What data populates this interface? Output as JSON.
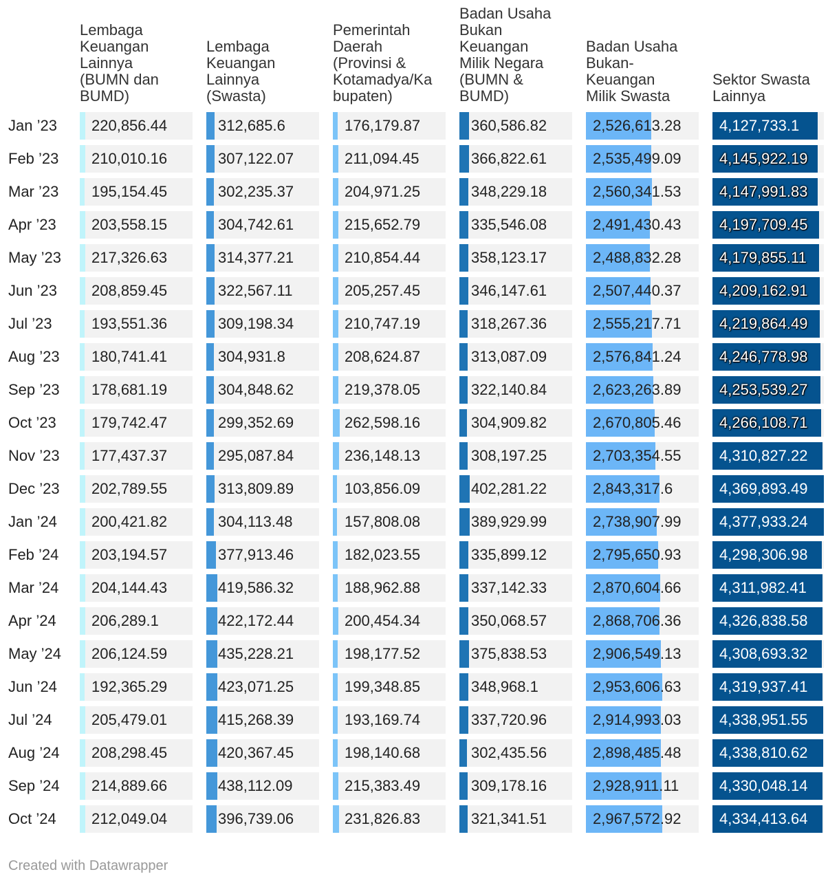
{
  "chart_data": {
    "type": "table",
    "columns": [
      {
        "header": "Lembaga\nKeuangan\nLainnya\n(BUMN dan\nBUMD)",
        "bar_color": "#c0f4fb"
      },
      {
        "header": "Lembaga\nKeuangan\nLainnya\n(Swasta)",
        "bar_color": "#4497d9"
      },
      {
        "header": "Pemerintah\nDaerah\n(Provinsi &\nKotamadya/Ka\nbupaten)",
        "bar_color": "#7cc4f8"
      },
      {
        "header": "Badan Usaha\nBukan\nKeuangan\nMilik Negara\n(BUMN &\nBUMD)",
        "bar_color": "#1f74b4"
      },
      {
        "header": "Badan Usaha\nBukan-\nKeuangan\nMilik Swasta",
        "bar_color": "#6cb6f7"
      },
      {
        "header": "Sektor Swasta\nLainnya",
        "bar_color": "#05538f"
      }
    ],
    "rows": [
      {
        "label": "Jan ’23",
        "values": [
          "220,856.44",
          "312,685.6",
          "176,179.87",
          "360,586.82",
          "2,526,613.28",
          "4,127,733.1"
        ]
      },
      {
        "label": "Feb ’23",
        "values": [
          "210,010.16",
          "307,122.07",
          "211,094.45",
          "366,822.61",
          "2,535,499.09",
          "4,145,922.19"
        ]
      },
      {
        "label": "Mar ’23",
        "values": [
          "195,154.45",
          "302,235.37",
          "204,971.25",
          "348,229.18",
          "2,560,341.53",
          "4,147,991.83"
        ]
      },
      {
        "label": "Apr ’23",
        "values": [
          "203,558.15",
          "304,742.61",
          "215,652.79",
          "335,546.08",
          "2,491,430.43",
          "4,197,709.45"
        ]
      },
      {
        "label": "May ’23",
        "values": [
          "217,326.63",
          "314,377.21",
          "210,854.44",
          "358,123.17",
          "2,488,832.28",
          "4,179,855.11"
        ]
      },
      {
        "label": "Jun ’23",
        "values": [
          "208,859.45",
          "322,567.11",
          "205,257.45",
          "346,147.61",
          "2,507,440.37",
          "4,209,162.91"
        ]
      },
      {
        "label": "Jul ’23",
        "values": [
          "193,551.36",
          "309,198.34",
          "210,747.19",
          "318,267.36",
          "2,555,217.71",
          "4,219,864.49"
        ]
      },
      {
        "label": "Aug ’23",
        "values": [
          "180,741.41",
          "304,931.8",
          "208,624.87",
          "313,087.09",
          "2,576,841.24",
          "4,246,778.98"
        ]
      },
      {
        "label": "Sep ’23",
        "values": [
          "178,681.19",
          "304,848.62",
          "219,378.05",
          "322,140.84",
          "2,623,263.89",
          "4,253,539.27"
        ]
      },
      {
        "label": "Oct ’23",
        "values": [
          "179,742.47",
          "299,352.69",
          "262,598.16",
          "304,909.82",
          "2,670,805.46",
          "4,266,108.71"
        ]
      },
      {
        "label": "Nov ’23",
        "values": [
          "177,437.37",
          "295,087.84",
          "236,148.13",
          "308,197.25",
          "2,703,354.55",
          "4,310,827.22"
        ]
      },
      {
        "label": "Dec ’23",
        "values": [
          "202,789.55",
          "313,809.89",
          "103,856.09",
          "402,281.22",
          "2,843,317.6",
          "4,369,893.49"
        ]
      },
      {
        "label": "Jan ’24",
        "values": [
          "200,421.82",
          "304,113.48",
          "157,808.08",
          "389,929.99",
          "2,738,907.99",
          "4,377,933.24"
        ]
      },
      {
        "label": "Feb ’24",
        "values": [
          "203,194.57",
          "377,913.46",
          "182,023.55",
          "335,899.12",
          "2,795,650.93",
          "4,298,306.98"
        ]
      },
      {
        "label": "Mar ’24",
        "values": [
          "204,144.43",
          "419,586.32",
          "188,962.88",
          "337,142.33",
          "2,870,604.66",
          "4,311,982.41"
        ]
      },
      {
        "label": "Apr ’24",
        "values": [
          "206,289.1",
          "422,172.44",
          "200,454.34",
          "350,068.57",
          "2,868,706.36",
          "4,326,838.58"
        ]
      },
      {
        "label": "May ’24",
        "values": [
          "206,124.59",
          "435,228.21",
          "198,177.52",
          "375,838.53",
          "2,906,549.13",
          "4,308,693.32"
        ]
      },
      {
        "label": "Jun ’24",
        "values": [
          "192,365.29",
          "423,071.25",
          "199,348.85",
          "348,968.1",
          "2,953,606.63",
          "4,319,937.41"
        ]
      },
      {
        "label": "Jul ’24",
        "values": [
          "205,479.01",
          "415,268.39",
          "193,169.74",
          "337,720.96",
          "2,914,993.03",
          "4,338,951.55"
        ]
      },
      {
        "label": "Aug ’24",
        "values": [
          "208,298.45",
          "420,367.45",
          "198,140.68",
          "302,435.56",
          "2,898,485.48",
          "4,338,810.62"
        ]
      },
      {
        "label": "Sep ’24",
        "values": [
          "214,889.66",
          "438,112.09",
          "215,383.49",
          "309,178.16",
          "2,928,911.11",
          "4,330,048.14"
        ]
      },
      {
        "label": "Oct ’24",
        "values": [
          "212,049.04",
          "396,739.06",
          "231,826.83",
          "321,341.51",
          "2,967,572.92",
          "4,334,413.64"
        ]
      }
    ],
    "bar_scale_max": 4377933.24
  },
  "footer": {
    "credit": "Created with Datawrapper"
  }
}
